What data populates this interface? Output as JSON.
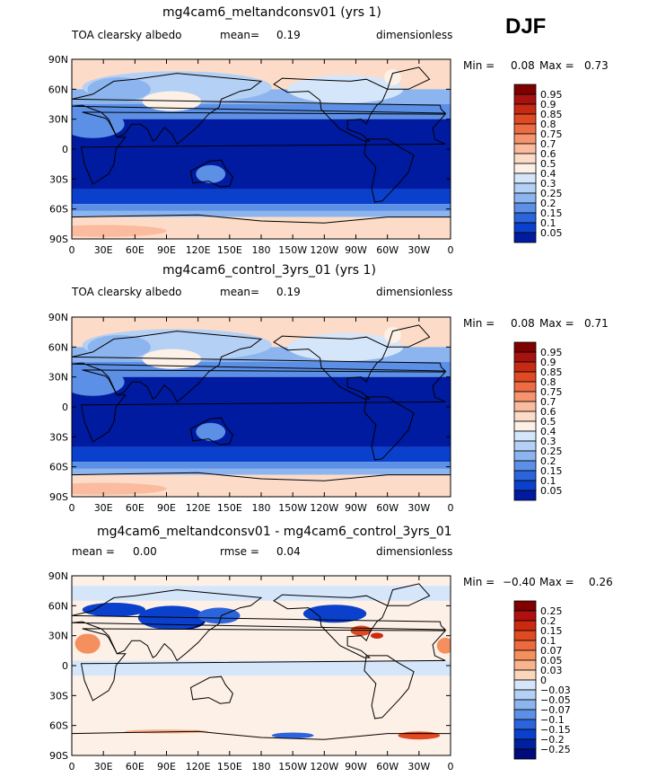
{
  "season": "DJF",
  "chart_data": [
    {
      "type": "heatmap",
      "title": "mg4cam6_meltandconsv01 (yrs 1)",
      "variable": "TOA clearsky albedo",
      "mean_label": "mean=",
      "mean_value": "0.19",
      "units": "dimensionless",
      "min_label": "Min =",
      "min_value": "0.08",
      "max_label": "Max =",
      "max_value": "0.73",
      "lat_ticks": [
        "90N",
        "60N",
        "30N",
        "0",
        "30S",
        "60S",
        "90S"
      ],
      "lon_ticks": [
        "0",
        "30E",
        "60E",
        "90E",
        "120E",
        "150E",
        "180",
        "150W",
        "120W",
        "90W",
        "60W",
        "30W",
        "0"
      ],
      "levels": [
        "0.95",
        "0.9",
        "0.85",
        "0.8",
        "0.75",
        "0.7",
        "0.6",
        "0.5",
        "0.4",
        "0.3",
        "0.25",
        "0.2",
        "0.15",
        "0.1",
        "0.05"
      ]
    },
    {
      "type": "heatmap",
      "title": "mg4cam6_control_3yrs_01 (yrs 1)",
      "variable": "TOA clearsky albedo",
      "mean_label": "mean=",
      "mean_value": "0.19",
      "units": "dimensionless",
      "min_label": "Min =",
      "min_value": "0.08",
      "max_label": "Max =",
      "max_value": "0.71",
      "lat_ticks": [
        "90N",
        "60N",
        "30N",
        "0",
        "30S",
        "60S",
        "90S"
      ],
      "lon_ticks": [
        "0",
        "30E",
        "60E",
        "90E",
        "120E",
        "150E",
        "180",
        "150W",
        "120W",
        "90W",
        "60W",
        "30W",
        "0"
      ],
      "levels": [
        "0.95",
        "0.9",
        "0.85",
        "0.8",
        "0.75",
        "0.7",
        "0.6",
        "0.5",
        "0.4",
        "0.3",
        "0.25",
        "0.2",
        "0.15",
        "0.1",
        "0.05"
      ]
    },
    {
      "type": "heatmap",
      "title": "mg4cam6_meltandconsv01 - mg4cam6_control_3yrs_01",
      "mean_label": "mean =",
      "mean_value": "0.00",
      "rmse_label": "rmse =",
      "rmse_value": "0.04",
      "units": "dimensionless",
      "min_label": "Min =",
      "min_value": "−0.40",
      "max_label": "Max =",
      "max_value": "0.26",
      "lat_ticks": [
        "90N",
        "60N",
        "30N",
        "0",
        "30S",
        "60S",
        "90S"
      ],
      "lon_ticks": [
        "0",
        "30E",
        "60E",
        "90E",
        "120E",
        "150E",
        "180",
        "150W",
        "120W",
        "90W",
        "60W",
        "30W",
        "0"
      ],
      "levels": [
        "0.25",
        "0.2",
        "0.15",
        "0.1",
        "0.07",
        "0.05",
        "0.03",
        "0",
        "−0.03",
        "−0.05",
        "−0.07",
        "−0.1",
        "−0.15",
        "−0.2",
        "−0.25"
      ]
    }
  ],
  "colors": {
    "pos": [
      "#800000",
      "#b01010",
      "#cc2a10",
      "#e04a20",
      "#ee6a3e",
      "#f5905e",
      "#f9b48e",
      "#fcd6bc"
    ],
    "mid": "#fdf0e6",
    "neg": [
      "#d6e6fa",
      "#b4d0f4",
      "#8cb4ee",
      "#5c90e6",
      "#2c64dc",
      "#0a40cc",
      "#0020a0",
      "#000a7a"
    ],
    "abs": [
      "#800000",
      "#a51210",
      "#c72a12",
      "#e04a22",
      "#ee6c44",
      "#f69470",
      "#fabb9e",
      "#fcdcc8",
      "#fdf0e6",
      "#d6e6fa",
      "#b4d0f4",
      "#8cb4ee",
      "#5c90e6",
      "#2c64dc",
      "#0a40cc",
      "#001aa0"
    ]
  }
}
